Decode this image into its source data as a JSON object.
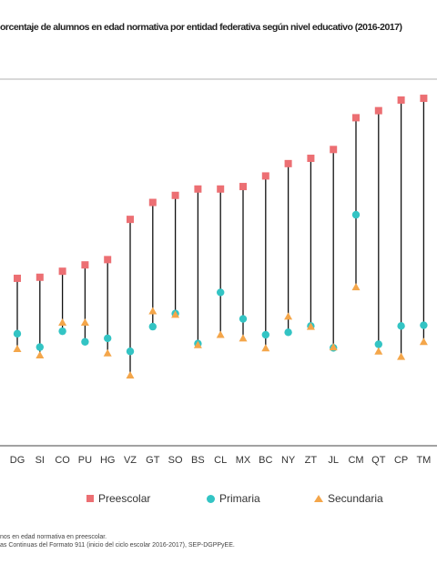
{
  "title": "orcentaje de alumnos en edad normativa por entidad federativa según nivel educativo (2016-2017)",
  "chart_data": {
    "type": "dot-range",
    "title": "orcentaje de alumnos en edad normativa por entidad federativa según nivel educativo (2016-2017)",
    "categories": [
      "DG",
      "SI",
      "CO",
      "PU",
      "HG",
      "VZ",
      "GT",
      "SO",
      "BS",
      "CL",
      "MX",
      "BC",
      "NY",
      "ZT",
      "JL",
      "CM",
      "QT",
      "CP",
      "TM"
    ],
    "series": [
      {
        "name": "Preescolar",
        "color": "#ec6f73",
        "marker": "square",
        "values": [
          79.5,
          79.8,
          81.5,
          83.3,
          84.8,
          96.2,
          101.0,
          103.0,
          104.8,
          104.8,
          105.5,
          108.5,
          112.0,
          113.5,
          116.0,
          125.0,
          127.0,
          130.0,
          130.5
        ]
      },
      {
        "name": "Primaria",
        "color": "#33c4c4",
        "marker": "circle",
        "values": [
          63.8,
          60.0,
          64.5,
          61.5,
          62.5,
          58.8,
          65.8,
          69.5,
          61.0,
          75.5,
          68.0,
          63.5,
          64.2,
          66.0,
          59.8,
          97.5,
          60.8,
          66.0,
          66.2
        ]
      },
      {
        "name": "Secundaria",
        "color": "#f4a64a",
        "marker": "triangle",
        "values": [
          59.5,
          57.7,
          67.0,
          67.0,
          58.3,
          52.0,
          70.2,
          69.2,
          60.6,
          63.5,
          62.5,
          59.7,
          68.7,
          65.8,
          60.0,
          77.0,
          58.8,
          57.3,
          61.5
        ]
      }
    ],
    "legend_position": "bottom",
    "grid": false
  },
  "legend": {
    "items": [
      "Preescolar",
      "Primaria",
      "Secundaria"
    ]
  },
  "notes": [
    "nos en edad normativa en preescolar.",
    "as Continuas del Formato 911 (inicio del ciclo escolar 2016-2017), SEP-DGPPyEE."
  ]
}
